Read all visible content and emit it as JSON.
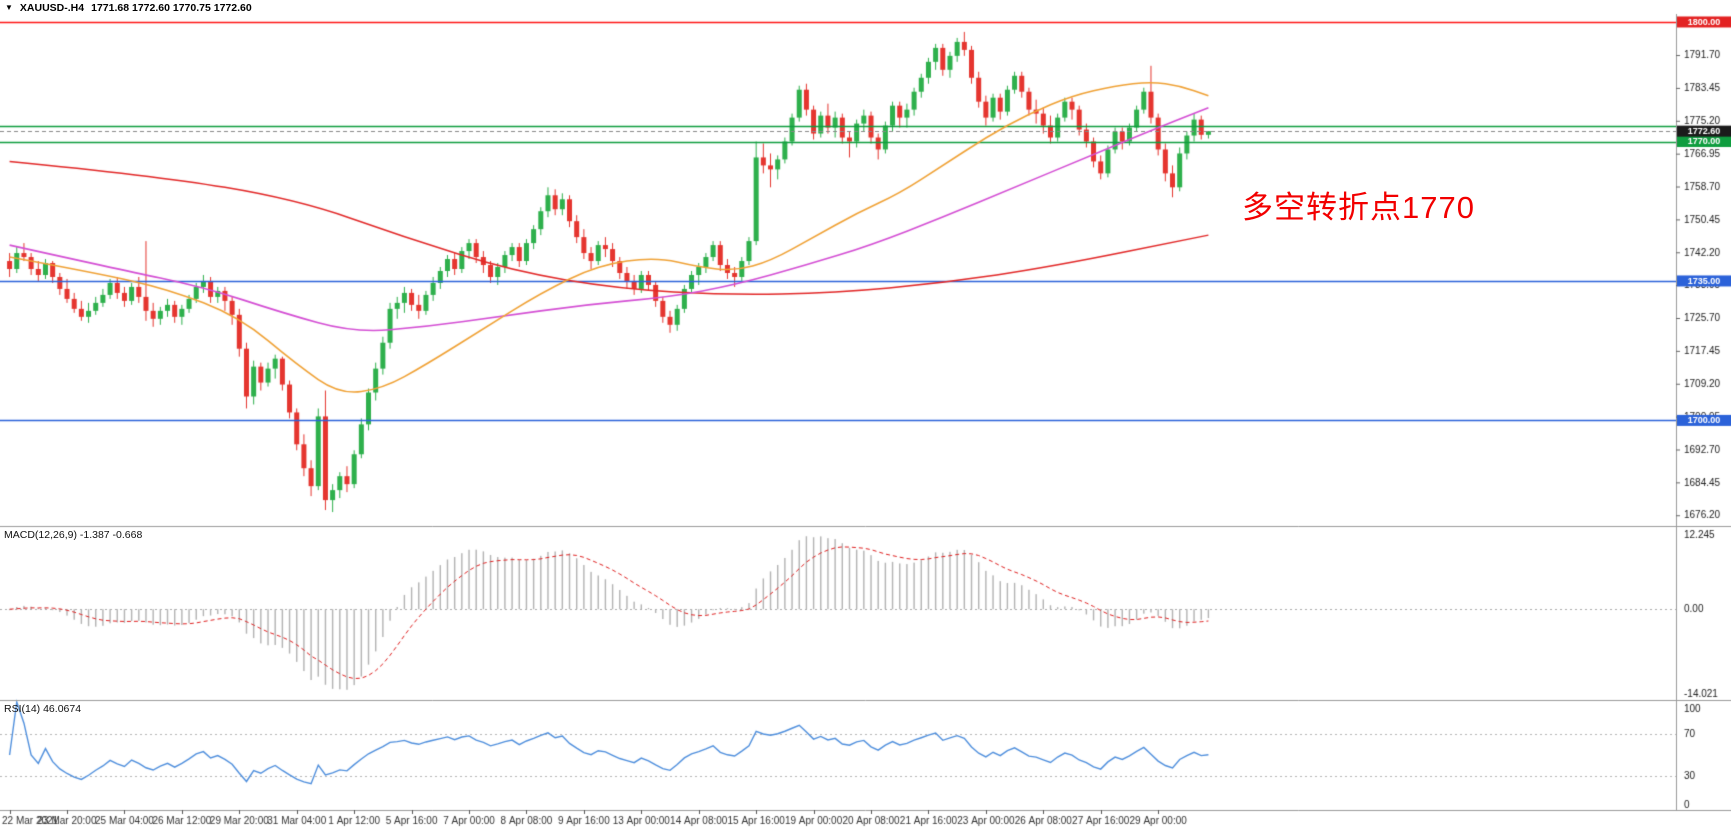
{
  "window": {
    "dropdown_icon": "▼",
    "symbol_tf": "XAUUSD-.H4",
    "ohlc_text": "1771.68 1772.60 1770.75 1772.60"
  },
  "annotation": {
    "text": "多空转折点1770",
    "color": "#f20000"
  },
  "panels": {
    "macd": {
      "label": "MACD(12,26,9) -1.387 -0.668",
      "scale_max": "12.245",
      "scale_zero": "0.00",
      "scale_min": "-14.021",
      "value": -1.387,
      "signal_value": -0.668
    },
    "rsi": {
      "label": "RSI(14) 46.0674",
      "period": 14,
      "value": 46.0674,
      "scale_labels": [
        "100",
        "70",
        "30",
        "0"
      ],
      "levels": [
        70,
        30
      ]
    }
  },
  "chart_data": {
    "type": "candlestick",
    "symbol": "XAUUSD-",
    "timeframe": "H4",
    "price_range": [
      1674,
      1801.5
    ],
    "y_ticks": [
      "1791.70",
      "1783.45",
      "1775.20",
      "1766.95",
      "1758.70",
      "1750.45",
      "1742.20",
      "1733.95",
      "1725.70",
      "1717.45",
      "1709.20",
      "1700.95",
      "1692.70",
      "1684.45",
      "1676.20"
    ],
    "x_labels": [
      "22 Mar 2021",
      "23 Mar 20:00",
      "25 Mar 04:00",
      "26 Mar 12:00",
      "29 Mar 20:00",
      "31 Mar 04:00",
      "1 Apr 12:00",
      "5 Apr 16:00",
      "7 Apr 00:00",
      "8 Apr 08:00",
      "9 Apr 16:00",
      "13 Apr 00:00",
      "14 Apr 08:00",
      "15 Apr 16:00",
      "19 Apr 00:00",
      "20 Apr 08:00",
      "21 Apr 16:00",
      "23 Apr 00:00",
      "26 Apr 08:00",
      "27 Apr 16:00",
      "29 Apr 00:00"
    ],
    "x_label_step": 8,
    "candles": [
      [
        1740,
        1742,
        1736,
        1738
      ],
      [
        1738,
        1743.5,
        1737,
        1742
      ],
      [
        1742,
        1744.5,
        1740,
        1741
      ],
      [
        1741,
        1742,
        1736.5,
        1738
      ],
      [
        1738,
        1740,
        1735,
        1736.5
      ],
      [
        1736.5,
        1740.5,
        1735.5,
        1739.5
      ],
      [
        1739.5,
        1740,
        1734.5,
        1736
      ],
      [
        1736,
        1737,
        1731.5,
        1733
      ],
      [
        1733,
        1735.5,
        1729.5,
        1730.5
      ],
      [
        1730.5,
        1732,
        1727,
        1728
      ],
      [
        1728,
        1730,
        1725,
        1726
      ],
      [
        1726,
        1729.5,
        1724.5,
        1727.5
      ],
      [
        1727.5,
        1731,
        1726.5,
        1729.5
      ],
      [
        1729.5,
        1733,
        1728.5,
        1731.5
      ],
      [
        1731.5,
        1735.5,
        1730.5,
        1734.5
      ],
      [
        1734.5,
        1736,
        1730.5,
        1732
      ],
      [
        1732,
        1733.5,
        1728.5,
        1730
      ],
      [
        1730,
        1734.5,
        1729,
        1733.5
      ],
      [
        1733.5,
        1736,
        1729.5,
        1731
      ],
      [
        1731,
        1745,
        1725,
        1727.5
      ],
      [
        1727.5,
        1729.5,
        1723.5,
        1725.5
      ],
      [
        1725.5,
        1728.5,
        1724,
        1727.5
      ],
      [
        1727.5,
        1730.5,
        1726,
        1729
      ],
      [
        1729,
        1730,
        1724.5,
        1726
      ],
      [
        1726,
        1729,
        1724,
        1728
      ],
      [
        1728,
        1731.5,
        1727,
        1730.5
      ],
      [
        1730.5,
        1734.5,
        1729.5,
        1733.5
      ],
      [
        1733.5,
        1736.5,
        1732,
        1735
      ],
      [
        1735,
        1736,
        1729.5,
        1731
      ],
      [
        1731,
        1733.5,
        1729.5,
        1732.5
      ],
      [
        1732.5,
        1733.5,
        1727.5,
        1730
      ],
      [
        1730,
        1731,
        1724,
        1726.5
      ],
      [
        1726.5,
        1728,
        1716,
        1718
      ],
      [
        1718,
        1719.5,
        1703,
        1706
      ],
      [
        1706,
        1715,
        1704,
        1713.5
      ],
      [
        1713.5,
        1714.5,
        1707.5,
        1709.5
      ],
      [
        1709.5,
        1714.5,
        1708.5,
        1713
      ],
      [
        1713,
        1716.5,
        1710.5,
        1715.5
      ],
      [
        1715.5,
        1716,
        1707.5,
        1709
      ],
      [
        1709,
        1710,
        1700.5,
        1702
      ],
      [
        1702,
        1703,
        1692.5,
        1694
      ],
      [
        1694,
        1696.5,
        1686,
        1688
      ],
      [
        1688,
        1690,
        1681,
        1683.5
      ],
      [
        1683.5,
        1703,
        1682.5,
        1701
      ],
      [
        1701,
        1707.5,
        1677.5,
        1680
      ],
      [
        1680,
        1684,
        1677,
        1682.5
      ],
      [
        1682.5,
        1687,
        1680.5,
        1686
      ],
      [
        1686,
        1688.5,
        1682,
        1684
      ],
      [
        1684,
        1692.5,
        1683,
        1691.5
      ],
      [
        1691.5,
        1700.5,
        1690.5,
        1699
      ],
      [
        1699,
        1708,
        1697.5,
        1707
      ],
      [
        1707,
        1714.5,
        1705,
        1713
      ],
      [
        1713,
        1721,
        1711.5,
        1719.5
      ],
      [
        1719.5,
        1729.5,
        1718,
        1728
      ],
      [
        1728,
        1731,
        1725.5,
        1729.5
      ],
      [
        1729.5,
        1733.5,
        1727,
        1732
      ],
      [
        1732,
        1733,
        1727.5,
        1729
      ],
      [
        1729,
        1731.5,
        1725.5,
        1727.5
      ],
      [
        1727.5,
        1732.5,
        1726.5,
        1731.5
      ],
      [
        1731.5,
        1736,
        1730,
        1734.5
      ],
      [
        1734.5,
        1738.5,
        1733,
        1737.5
      ],
      [
        1737.5,
        1741.5,
        1736,
        1740.5
      ],
      [
        1740.5,
        1742,
        1736.5,
        1738
      ],
      [
        1738,
        1743.5,
        1737,
        1742.5
      ],
      [
        1742.5,
        1745.5,
        1740.5,
        1744.5
      ],
      [
        1744.5,
        1745.5,
        1739.5,
        1741
      ],
      [
        1741,
        1742.5,
        1737,
        1739
      ],
      [
        1739,
        1740,
        1734.5,
        1736
      ],
      [
        1736,
        1739.5,
        1734,
        1738.5
      ],
      [
        1738.5,
        1742.5,
        1737,
        1741.5
      ],
      [
        1741.5,
        1744.5,
        1740,
        1743.5
      ],
      [
        1743.5,
        1744.5,
        1738.5,
        1740
      ],
      [
        1740,
        1745.5,
        1739,
        1744.5
      ],
      [
        1744.5,
        1749,
        1743,
        1748
      ],
      [
        1748,
        1753.5,
        1746.5,
        1752.5
      ],
      [
        1752.5,
        1758.5,
        1751,
        1756.5
      ],
      [
        1756.5,
        1758,
        1751.5,
        1753
      ],
      [
        1753,
        1757,
        1751.5,
        1755.5
      ],
      [
        1755.5,
        1756.5,
        1748.5,
        1750
      ],
      [
        1750,
        1751.5,
        1744.5,
        1746
      ],
      [
        1746,
        1748,
        1740.5,
        1742
      ],
      [
        1742,
        1743.5,
        1738,
        1740
      ],
      [
        1740,
        1745,
        1739,
        1744
      ],
      [
        1744,
        1746,
        1741,
        1743
      ],
      [
        1743,
        1744.5,
        1738.5,
        1740
      ],
      [
        1740,
        1741,
        1735.5,
        1737
      ],
      [
        1737,
        1738.5,
        1733,
        1735
      ],
      [
        1735,
        1736.5,
        1731.5,
        1733
      ],
      [
        1733,
        1737.5,
        1732,
        1736.5
      ],
      [
        1736.5,
        1737.5,
        1732.5,
        1734
      ],
      [
        1734,
        1735,
        1728.5,
        1730
      ],
      [
        1730,
        1731,
        1724.5,
        1726
      ],
      [
        1726,
        1727.5,
        1722,
        1724
      ],
      [
        1724,
        1729,
        1722.5,
        1728
      ],
      [
        1728,
        1734,
        1727,
        1733
      ],
      [
        1733,
        1737.5,
        1732,
        1736.5
      ],
      [
        1736.5,
        1739.5,
        1734,
        1738.5
      ],
      [
        1738.5,
        1742,
        1737,
        1741
      ],
      [
        1741,
        1745,
        1740,
        1744
      ],
      [
        1744,
        1745,
        1737.5,
        1739
      ],
      [
        1739,
        1740.5,
        1735.5,
        1737
      ],
      [
        1737,
        1738.5,
        1733.5,
        1736
      ],
      [
        1736,
        1741,
        1735,
        1740
      ],
      [
        1740,
        1746,
        1739,
        1745
      ],
      [
        1745,
        1770,
        1744,
        1766
      ],
      [
        1766,
        1769.5,
        1762,
        1764
      ],
      [
        1764,
        1767,
        1758.5,
        1763
      ],
      [
        1763,
        1766.5,
        1760.5,
        1765.5
      ],
      [
        1765.5,
        1771,
        1764.5,
        1770
      ],
      [
        1770,
        1777,
        1769,
        1776
      ],
      [
        1776,
        1784,
        1775,
        1783
      ],
      [
        1783,
        1784.5,
        1776.5,
        1778
      ],
      [
        1778,
        1779,
        1770.5,
        1772
      ],
      [
        1772,
        1777.5,
        1771,
        1776.5
      ],
      [
        1776.5,
        1779.5,
        1772,
        1773.5
      ],
      [
        1773.5,
        1777.5,
        1771,
        1776
      ],
      [
        1776,
        1777,
        1769.5,
        1771
      ],
      [
        1771,
        1772.5,
        1766,
        1770
      ],
      [
        1770,
        1775.5,
        1768.5,
        1774.5
      ],
      [
        1774.5,
        1778,
        1772.5,
        1776.5
      ],
      [
        1776.5,
        1777.5,
        1769.5,
        1771
      ],
      [
        1771,
        1772,
        1765.5,
        1768
      ],
      [
        1768,
        1775,
        1767,
        1774
      ],
      [
        1774,
        1780,
        1772.5,
        1779
      ],
      [
        1779,
        1780,
        1773.5,
        1776
      ],
      [
        1776,
        1779.5,
        1773.5,
        1778
      ],
      [
        1778,
        1783.5,
        1776.5,
        1782.5
      ],
      [
        1782.5,
        1787,
        1781,
        1786
      ],
      [
        1786,
        1791,
        1784.5,
        1790
      ],
      [
        1790,
        1794.5,
        1788,
        1793.5
      ],
      [
        1793.5,
        1794.5,
        1786.5,
        1788
      ],
      [
        1788,
        1792.5,
        1786,
        1791.5
      ],
      [
        1791.5,
        1796,
        1790,
        1795
      ],
      [
        1795,
        1797.5,
        1791.5,
        1793
      ],
      [
        1793,
        1794,
        1784.5,
        1786
      ],
      [
        1786,
        1787.5,
        1778.5,
        1780
      ],
      [
        1780,
        1781.5,
        1774,
        1776
      ],
      [
        1776,
        1782,
        1775,
        1781
      ],
      [
        1781,
        1782,
        1775.5,
        1777.5
      ],
      [
        1777.5,
        1784,
        1776.5,
        1783
      ],
      [
        1783,
        1787.5,
        1782,
        1786.5
      ],
      [
        1786.5,
        1787.5,
        1781,
        1782.5
      ],
      [
        1782.5,
        1783.5,
        1776.5,
        1778
      ],
      [
        1778,
        1780.5,
        1774.5,
        1777
      ],
      [
        1777,
        1778.5,
        1772,
        1774
      ],
      [
        1774,
        1776.5,
        1769.5,
        1771
      ],
      [
        1771,
        1777,
        1770,
        1776
      ],
      [
        1776,
        1781,
        1775,
        1780
      ],
      [
        1780,
        1781,
        1775.5,
        1778
      ],
      [
        1778,
        1779,
        1771.5,
        1773
      ],
      [
        1773,
        1774.5,
        1768.5,
        1770
      ],
      [
        1770,
        1771,
        1763.5,
        1765
      ],
      [
        1765,
        1766.5,
        1760.5,
        1762
      ],
      [
        1762,
        1769,
        1761,
        1768
      ],
      [
        1768,
        1773.5,
        1767,
        1772.5
      ],
      [
        1772.5,
        1773.5,
        1768,
        1770
      ],
      [
        1770,
        1774.5,
        1769,
        1773.5
      ],
      [
        1773.5,
        1779,
        1772.5,
        1778
      ],
      [
        1778,
        1783.5,
        1777,
        1782.5
      ],
      [
        1782.5,
        1789,
        1774.5,
        1776
      ],
      [
        1776,
        1777,
        1766.5,
        1768
      ],
      [
        1768,
        1769.5,
        1760,
        1762
      ],
      [
        1762,
        1764,
        1756,
        1758.5
      ],
      [
        1758.5,
        1768.5,
        1757.5,
        1767
      ],
      [
        1767,
        1772.5,
        1765.5,
        1771.5
      ],
      [
        1771.5,
        1777,
        1770,
        1775.5
      ],
      [
        1775.5,
        1776.5,
        1770.5,
        1771.68
      ],
      [
        1771.68,
        1772.6,
        1770.75,
        1772.6
      ]
    ],
    "moving_averages": [
      {
        "name": "ma-slow",
        "color": "#e22828",
        "width": 1.5,
        "points": [
          [
            0,
            1765
          ],
          [
            20,
            1761.5
          ],
          [
            40,
            1755.5
          ],
          [
            55,
            1746
          ],
          [
            70,
            1737.5
          ],
          [
            85,
            1733
          ],
          [
            100,
            1731.5
          ],
          [
            115,
            1732
          ],
          [
            130,
            1734.5
          ],
          [
            145,
            1738.5
          ],
          [
            167,
            1746.5
          ]
        ]
      },
      {
        "name": "ma-medium",
        "color": "#d44fd4",
        "width": 1.6,
        "points": [
          [
            0,
            1744
          ],
          [
            15,
            1738
          ],
          [
            27,
            1733.5
          ],
          [
            38,
            1727
          ],
          [
            48,
            1722
          ],
          [
            58,
            1723.5
          ],
          [
            68,
            1726
          ],
          [
            80,
            1729
          ],
          [
            92,
            1731
          ],
          [
            101,
            1734
          ],
          [
            111,
            1739
          ],
          [
            120,
            1744
          ],
          [
            130,
            1751
          ],
          [
            140,
            1758.5
          ],
          [
            150,
            1766
          ],
          [
            158,
            1772
          ],
          [
            167,
            1778.5
          ]
        ]
      },
      {
        "name": "ma-fast",
        "color": "#f0a236",
        "width": 1.6,
        "points": [
          [
            0,
            1741
          ],
          [
            12,
            1737
          ],
          [
            22,
            1733
          ],
          [
            32,
            1726
          ],
          [
            40,
            1714
          ],
          [
            46,
            1706.5
          ],
          [
            52,
            1708
          ],
          [
            58,
            1714
          ],
          [
            66,
            1723
          ],
          [
            74,
            1732
          ],
          [
            82,
            1739
          ],
          [
            90,
            1741
          ],
          [
            96,
            1738.5
          ],
          [
            101,
            1737.5
          ],
          [
            106,
            1740
          ],
          [
            112,
            1746
          ],
          [
            118,
            1752
          ],
          [
            124,
            1757
          ],
          [
            130,
            1764
          ],
          [
            136,
            1771
          ],
          [
            142,
            1777
          ],
          [
            148,
            1781.5
          ],
          [
            154,
            1784
          ],
          [
            159,
            1785
          ],
          [
            163,
            1784
          ],
          [
            167,
            1781.5
          ]
        ]
      }
    ],
    "horizontal_lines": [
      {
        "price": 1800,
        "color": "#ff1414",
        "width": 1.4,
        "badge": "1800.00",
        "badge_bg": "#e32222"
      },
      {
        "price": 1773.8,
        "color": "#0f9d3f",
        "width": 1.7,
        "badge": null,
        "badge_bg": null
      },
      {
        "price": 1770,
        "color": "#0f9d3f",
        "width": 1.7,
        "badge": "1770.00",
        "badge_bg": "#0f9d3f"
      },
      {
        "price": 1735,
        "color": "#2b62d9",
        "width": 1.7,
        "badge": "1735.00",
        "badge_bg": "#2b62d9"
      },
      {
        "price": 1700,
        "color": "#2b62d9",
        "width": 1.7,
        "badge": "1700.00",
        "badge_bg": "#2b62d9"
      }
    ],
    "current_price": {
      "value": 1772.6,
      "badge": "1772.60",
      "badge_bg": "#1b1b1b"
    },
    "macd_params": [
      12,
      26,
      9
    ],
    "rsi_period": 14,
    "colors": {
      "up": "#2eb04c",
      "down": "#e5352f",
      "macd_hist": "#b3b3b3",
      "macd_signal": "#e02020",
      "rsi_line": "#4f8fdd",
      "axis_text": "#222222",
      "time_text": "#333333",
      "separator": "#9a9a9a"
    }
  }
}
